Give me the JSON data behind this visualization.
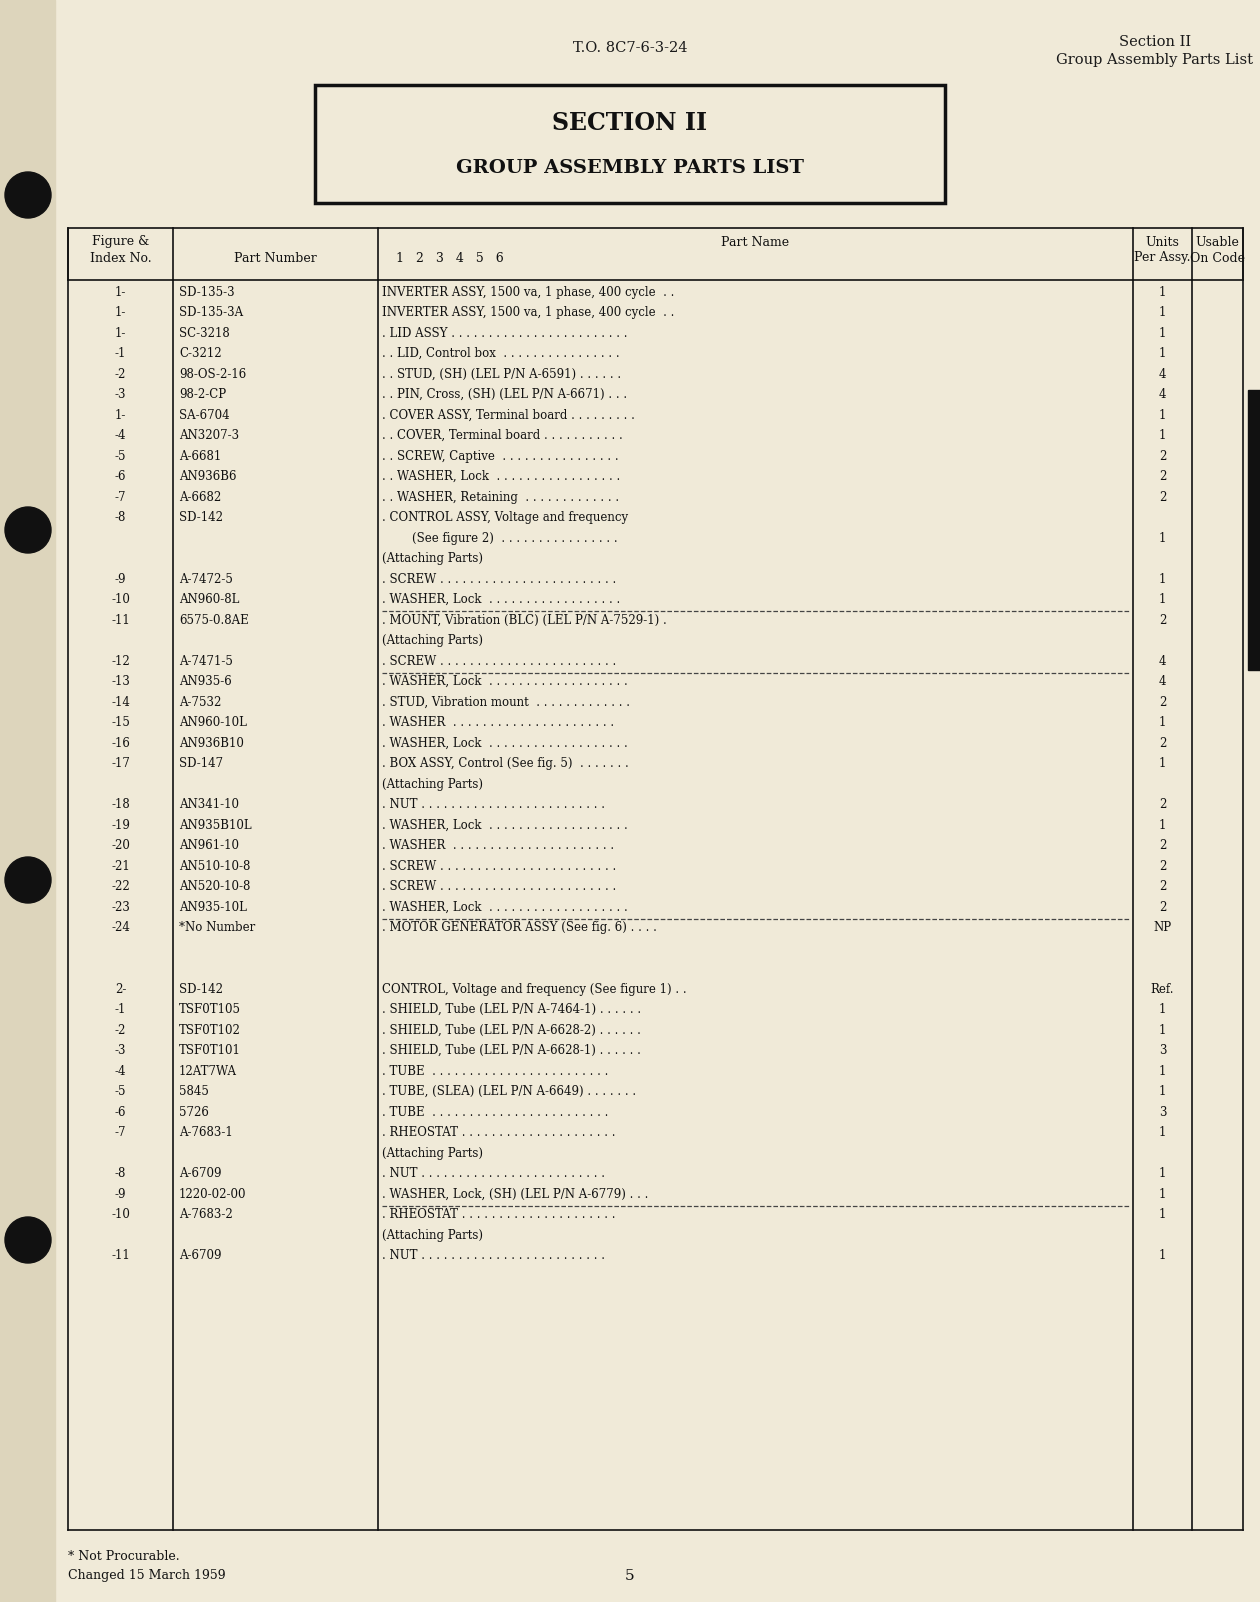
{
  "bg_color": "#f0ead8",
  "header_left": "T.O. 8C7-6-3-24",
  "header_right_line1": "Section II",
  "header_right_line2": "Group Assembly Parts List",
  "section_title_line1": "SECTION II",
  "section_title_line2": "GROUP ASSEMBLY PARTS LIST",
  "footer_note1": "* Not Procurable.",
  "footer_note2": "Changed 15 March 1959",
  "footer_page": "5",
  "rows": [
    {
      "fig": "1-",
      "part": "SD-135-3",
      "indent": 0,
      "name": "INVERTER ASSY, 1500 va, 1 phase, 400 cycle  . .",
      "units": "1",
      "sep": false
    },
    {
      "fig": "1-",
      "part": "SD-135-3A",
      "indent": 0,
      "name": "INVERTER ASSY, 1500 va, 1 phase, 400 cycle  . .",
      "units": "1",
      "sep": false
    },
    {
      "fig": "1-",
      "part": "SC-3218",
      "indent": 1,
      "name": ". LID ASSY . . . . . . . . . . . . . . . . . . . . . . . .",
      "units": "1",
      "sep": false
    },
    {
      "fig": "-1",
      "part": "C-3212",
      "indent": 2,
      "name": ". . LID, Control box  . . . . . . . . . . . . . . . .",
      "units": "1",
      "sep": false
    },
    {
      "fig": "-2",
      "part": "98-OS-2-16",
      "indent": 2,
      "name": ". . STUD, (SH) (LEL P/N A-6591) . . . . . .",
      "units": "4",
      "sep": false
    },
    {
      "fig": "-3",
      "part": "98-2-CP",
      "indent": 2,
      "name": ". . PIN, Cross, (SH) (LEL P/N A-6671) . . .",
      "units": "4",
      "sep": false
    },
    {
      "fig": "1-",
      "part": "SA-6704",
      "indent": 1,
      "name": ". COVER ASSY, Terminal board . . . . . . . . .",
      "units": "1",
      "sep": false
    },
    {
      "fig": "-4",
      "part": "AN3207-3",
      "indent": 2,
      "name": ". . COVER, Terminal board . . . . . . . . . . .",
      "units": "1",
      "sep": false
    },
    {
      "fig": "-5",
      "part": "A-6681",
      "indent": 2,
      "name": ". . SCREW, Captive  . . . . . . . . . . . . . . . .",
      "units": "2",
      "sep": false
    },
    {
      "fig": "-6",
      "part": "AN936B6",
      "indent": 2,
      "name": ". . WASHER, Lock  . . . . . . . . . . . . . . . . .",
      "units": "2",
      "sep": false
    },
    {
      "fig": "-7",
      "part": "A-6682",
      "indent": 2,
      "name": ". . WASHER, Retaining  . . . . . . . . . . . . .",
      "units": "2",
      "sep": false
    },
    {
      "fig": "-8",
      "part": "SD-142",
      "indent": 1,
      "name": ". CONTROL ASSY, Voltage and frequency",
      "units": "",
      "sep": false
    },
    {
      "fig": "",
      "part": "",
      "indent": 3,
      "name": "        (See figure 2)  . . . . . . . . . . . . . . . .",
      "units": "1",
      "sep": false
    },
    {
      "fig": "",
      "part": "",
      "indent": 0,
      "name": "(Attaching Parts)",
      "units": "",
      "sep": false
    },
    {
      "fig": "-9",
      "part": "A-7472-5",
      "indent": 1,
      "name": ". SCREW . . . . . . . . . . . . . . . . . . . . . . . .",
      "units": "1",
      "sep": false
    },
    {
      "fig": "-10",
      "part": "AN960-8L",
      "indent": 1,
      "name": ". WASHER, Lock  . . . . . . . . . . . . . . . . . .",
      "units": "1",
      "sep": true
    },
    {
      "fig": "-11",
      "part": "6575-0.8AE",
      "indent": 1,
      "name": ". MOUNT, Vibration (BLC) (LEL P/N A-7529-1) .",
      "units": "2",
      "sep": false
    },
    {
      "fig": "",
      "part": "",
      "indent": 0,
      "name": "(Attaching Parts)",
      "units": "",
      "sep": false
    },
    {
      "fig": "-12",
      "part": "A-7471-5",
      "indent": 1,
      "name": ". SCREW . . . . . . . . . . . . . . . . . . . . . . . .",
      "units": "4",
      "sep": true
    },
    {
      "fig": "-13",
      "part": "AN935-6",
      "indent": 1,
      "name": ". WASHER, Lock  . . . . . . . . . . . . . . . . . . .",
      "units": "4",
      "sep": false
    },
    {
      "fig": "-14",
      "part": "A-7532",
      "indent": 1,
      "name": ". STUD, Vibration mount  . . . . . . . . . . . . .",
      "units": "2",
      "sep": false
    },
    {
      "fig": "-15",
      "part": "AN960-10L",
      "indent": 1,
      "name": ". WASHER  . . . . . . . . . . . . . . . . . . . . . .",
      "units": "1",
      "sep": false
    },
    {
      "fig": "-16",
      "part": "AN936B10",
      "indent": 1,
      "name": ". WASHER, Lock  . . . . . . . . . . . . . . . . . . .",
      "units": "2",
      "sep": false
    },
    {
      "fig": "-17",
      "part": "SD-147",
      "indent": 1,
      "name": ". BOX ASSY, Control (See fig. 5)  . . . . . . .",
      "units": "1",
      "sep": false
    },
    {
      "fig": "",
      "part": "",
      "indent": 0,
      "name": "(Attaching Parts)",
      "units": "",
      "sep": false
    },
    {
      "fig": "-18",
      "part": "AN341-10",
      "indent": 1,
      "name": ". NUT . . . . . . . . . . . . . . . . . . . . . . . . .",
      "units": "2",
      "sep": false
    },
    {
      "fig": "-19",
      "part": "AN935B10L",
      "indent": 1,
      "name": ". WASHER, Lock  . . . . . . . . . . . . . . . . . . .",
      "units": "1",
      "sep": false
    },
    {
      "fig": "-20",
      "part": "AN961-10",
      "indent": 1,
      "name": ". WASHER  . . . . . . . . . . . . . . . . . . . . . .",
      "units": "2",
      "sep": false
    },
    {
      "fig": "-21",
      "part": "AN510-10-8",
      "indent": 1,
      "name": ". SCREW . . . . . . . . . . . . . . . . . . . . . . . .",
      "units": "2",
      "sep": false
    },
    {
      "fig": "-22",
      "part": "AN520-10-8",
      "indent": 1,
      "name": ". SCREW . . . . . . . . . . . . . . . . . . . . . . . .",
      "units": "2",
      "sep": false
    },
    {
      "fig": "-23",
      "part": "AN935-10L",
      "indent": 1,
      "name": ". WASHER, Lock  . . . . . . . . . . . . . . . . . . .",
      "units": "2",
      "sep": true
    },
    {
      "fig": "-24",
      "part": "*No Number",
      "indent": 1,
      "name": ". MOTOR GENERATOR ASSY (See fig. 6) . . . .",
      "units": "NP",
      "sep": false
    },
    {
      "fig": "",
      "part": "",
      "indent": 0,
      "name": "",
      "units": "",
      "sep": false
    },
    {
      "fig": "2-",
      "part": "SD-142",
      "indent": 0,
      "name": "CONTROL, Voltage and frequency (See figure 1) . .",
      "units": "Ref.",
      "sep": false
    },
    {
      "fig": "-1",
      "part": "TSF0T105",
      "indent": 1,
      "name": ". SHIELD, Tube (LEL P/N A-7464-1) . . . . . .",
      "units": "1",
      "sep": false
    },
    {
      "fig": "-2",
      "part": "TSF0T102",
      "indent": 1,
      "name": ". SHIELD, Tube (LEL P/N A-6628-2) . . . . . .",
      "units": "1",
      "sep": false
    },
    {
      "fig": "-3",
      "part": "TSF0T101",
      "indent": 1,
      "name": ". SHIELD, Tube (LEL P/N A-6628-1) . . . . . .",
      "units": "3",
      "sep": false
    },
    {
      "fig": "-4",
      "part": "12AT7WA",
      "indent": 1,
      "name": ". TUBE  . . . . . . . . . . . . . . . . . . . . . . . .",
      "units": "1",
      "sep": false
    },
    {
      "fig": "-5",
      "part": "5845",
      "indent": 1,
      "name": ". TUBE, (SLEA) (LEL P/N A-6649) . . . . . . .",
      "units": "1",
      "sep": false
    },
    {
      "fig": "-6",
      "part": "5726",
      "indent": 1,
      "name": ". TUBE  . . . . . . . . . . . . . . . . . . . . . . . .",
      "units": "3",
      "sep": false
    },
    {
      "fig": "-7",
      "part": "A-7683-1",
      "indent": 1,
      "name": ". RHEOSTAT . . . . . . . . . . . . . . . . . . . . .",
      "units": "1",
      "sep": false
    },
    {
      "fig": "",
      "part": "",
      "indent": 0,
      "name": "(Attaching Parts)",
      "units": "",
      "sep": false
    },
    {
      "fig": "-8",
      "part": "A-6709",
      "indent": 1,
      "name": ". NUT . . . . . . . . . . . . . . . . . . . . . . . . .",
      "units": "1",
      "sep": false
    },
    {
      "fig": "-9",
      "part": "1220-02-00",
      "indent": 1,
      "name": ". WASHER, Lock, (SH) (LEL P/N A-6779) . . .",
      "units": "1",
      "sep": true
    },
    {
      "fig": "-10",
      "part": "A-7683-2",
      "indent": 1,
      "name": ". RHEOSTAT . . . . . . . . . . . . . . . . . . . . .",
      "units": "1",
      "sep": false
    },
    {
      "fig": "",
      "part": "",
      "indent": 0,
      "name": "(Attaching Parts)",
      "units": "",
      "sep": false
    },
    {
      "fig": "-11",
      "part": "A-6709",
      "indent": 1,
      "name": ". NUT . . . . . . . . . . . . . . . . . . . . . . . . .",
      "units": "1",
      "sep": false
    }
  ]
}
